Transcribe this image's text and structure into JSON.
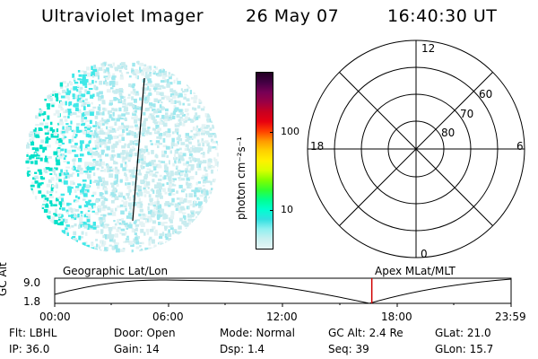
{
  "header": {
    "instrument": "Ultraviolet Imager",
    "date": "26 May 07",
    "time": "16:40:30 UT"
  },
  "colorbar": {
    "unit_label": "photon cm⁻²s⁻¹",
    "ticks": [
      "100",
      "10"
    ],
    "colors": [
      "#220022",
      "#440044",
      "#770055",
      "#9a0044",
      "#c80020",
      "#e80010",
      "#ff4000",
      "#ff9a00",
      "#ffd000",
      "#fff000",
      "#d8ff00",
      "#80ff00",
      "#30ff30",
      "#00ff90",
      "#00ffd0",
      "#30e0e0",
      "#90f0f0",
      "#c8f0f0",
      "#e6f6f6"
    ]
  },
  "polar": {
    "mlt_labels": {
      "top": "12",
      "left": "18",
      "right": "6",
      "bottom": "0"
    },
    "lat_labels": [
      "60",
      "70",
      "80"
    ]
  },
  "timeline": {
    "alt_label": "GC Alt",
    "alt_max": "9.0",
    "alt_min": "1.8",
    "left_title": "Geographic Lat/Lon",
    "right_title": "Apex MLat/MLT",
    "time_ticks": [
      "00:00",
      "06:00",
      "12:00",
      "18:00",
      "23:59"
    ],
    "current_time_fraction": 0.6948
  },
  "info": {
    "flt": "Flt: LBHL",
    "ip": "IP: 36.0",
    "door": "Door: Open",
    "gain": "Gain: 14",
    "mode": "Mode: Normal",
    "dsp": "Dsp:     1.4",
    "gc_alt": "GC Alt: 2.4 Re",
    "seq": "Seq: 39",
    "glat": "GLat:  21.0",
    "glon": "GLon:   15.7"
  }
}
